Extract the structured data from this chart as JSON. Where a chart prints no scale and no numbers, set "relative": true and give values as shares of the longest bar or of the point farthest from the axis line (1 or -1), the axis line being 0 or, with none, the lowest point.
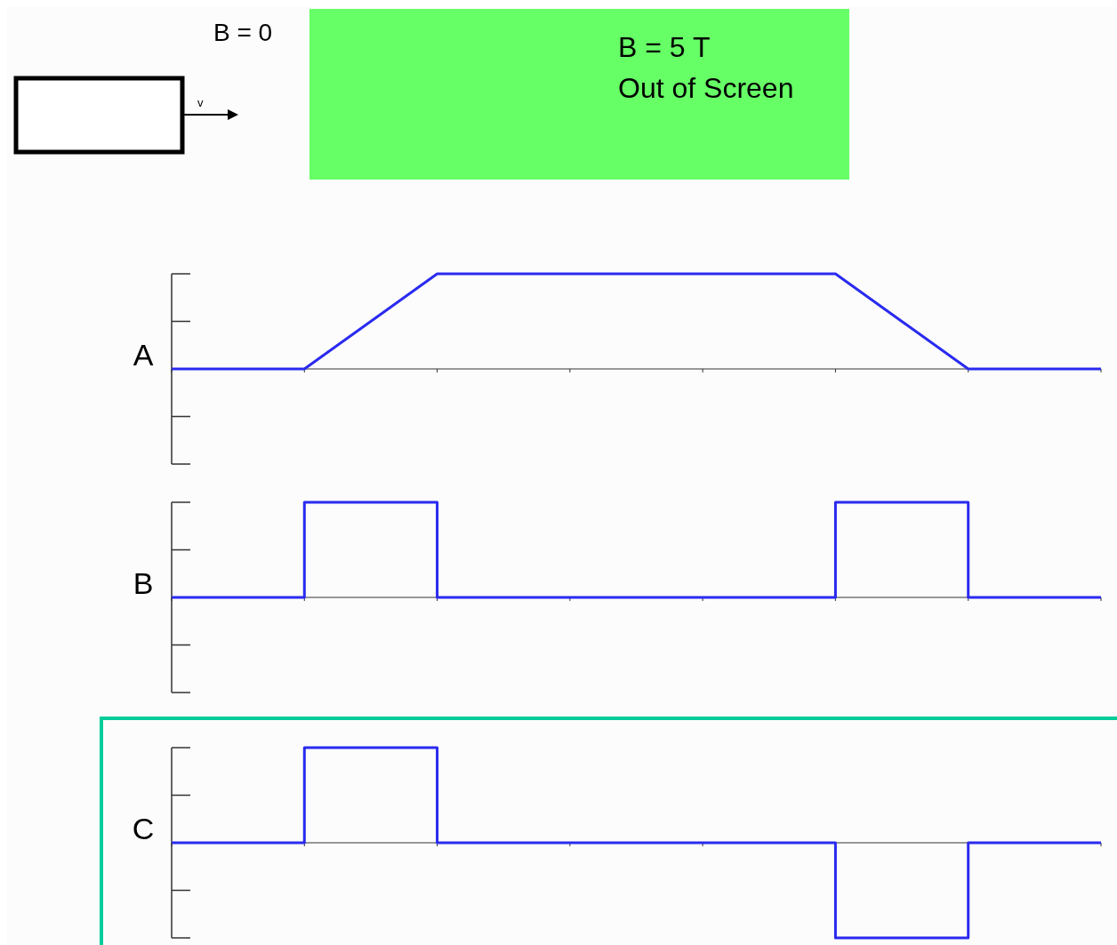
{
  "chart_data": [
    {
      "type": "other",
      "annotations": [
        "B = 0",
        "v",
        "B = 5 T",
        "Out of Screen"
      ]
    },
    {
      "type": "line",
      "ylabel": "A",
      "relative": true,
      "categories": [
        null,
        null,
        null,
        null,
        null,
        null,
        null,
        null
      ],
      "grid": false,
      "marker": "none",
      "line_style": "solid",
      "series": [
        {
          "color": "#2a2af0",
          "values": [
            0,
            0,
            1,
            1,
            1,
            1,
            0,
            0
          ]
        }
      ]
    },
    {
      "type": "step",
      "ylabel": "B",
      "relative": true,
      "categories": [
        null,
        null,
        null,
        null,
        null,
        null,
        null,
        null
      ],
      "grid": false,
      "marker": "none",
      "line_style": "solid",
      "series": [
        {
          "color": "#2a2af0",
          "values": [
            0,
            1,
            0,
            0,
            0,
            1,
            0,
            0
          ]
        }
      ]
    },
    {
      "type": "step",
      "ylabel": "C",
      "relative": true,
      "categories": [
        null,
        null,
        null,
        null,
        null,
        null,
        null,
        null
      ],
      "grid": false,
      "marker": "none",
      "line_style": "solid",
      "series": [
        {
          "color": "#2a2af0",
          "values": [
            0,
            1,
            0,
            0,
            0,
            -1,
            0,
            0
          ]
        }
      ]
    }
  ]
}
